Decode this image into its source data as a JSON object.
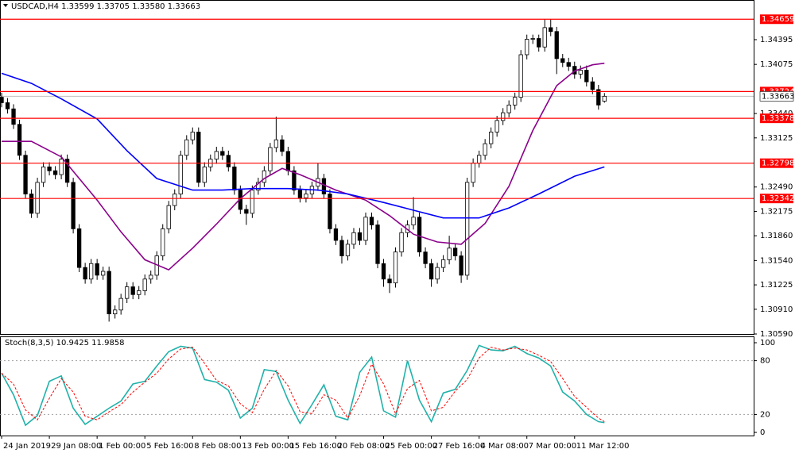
{
  "chart_data": [
    {
      "type": "candlestick",
      "title": "USDCAD,H4  1.33599 1.33705 1.33580 1.33663",
      "xlim": [
        -0.27,
        126
      ],
      "ylim": [
        1.3059,
        1.34887
      ],
      "yticks": [
        1.34395,
        1.34075,
        {
          "value": 1.3344,
          "label": "1.33440"
        },
        1.33125,
        {
          "value": 1.3249,
          "label": "1.32490"
        },
        1.32175,
        {
          "value": 1.3186,
          "label": "1.31860"
        },
        {
          "value": 1.3154,
          "label": "1.31540"
        },
        1.31225,
        {
          "value": 1.3091,
          "label": "1.30910"
        },
        {
          "value": 1.3059,
          "label": "1.30590"
        }
      ],
      "up_color": "#ffffff",
      "down_color": "#000000",
      "outline_color": "#000000",
      "candles": [
        [
          1.3365,
          1.3371,
          1.3352,
          1.3358
        ],
        [
          1.3358,
          1.3364,
          1.3344,
          1.335
        ],
        [
          1.335,
          1.3356,
          1.3324,
          1.333
        ],
        [
          1.333,
          1.3336,
          1.3284,
          1.329
        ],
        [
          1.329,
          1.3296,
          1.3234,
          1.324
        ],
        [
          1.324,
          1.3246,
          1.3209,
          1.3215
        ],
        [
          1.3215,
          1.3261,
          1.3209,
          1.3255
        ],
        [
          1.3255,
          1.3281,
          1.3249,
          1.3275
        ],
        [
          1.3275,
          1.3281,
          1.3264,
          1.327
        ],
        [
          1.327,
          1.3276,
          1.3259,
          1.3265
        ],
        [
          1.3265,
          1.3291,
          1.3259,
          1.3285
        ],
        [
          1.3285,
          1.3291,
          1.3249,
          1.3255
        ],
        [
          1.3255,
          1.3261,
          1.3189,
          1.3195
        ],
        [
          1.3195,
          1.3201,
          1.3139,
          1.3145
        ],
        [
          1.3145,
          1.3151,
          1.3124,
          1.313
        ],
        [
          1.313,
          1.3156,
          1.3124,
          1.315
        ],
        [
          1.315,
          1.3156,
          1.3129,
          1.3135
        ],
        [
          1.3135,
          1.3146,
          1.3129,
          1.314
        ],
        [
          1.314,
          1.3146,
          1.3075,
          1.3085
        ],
        [
          1.3085,
          1.3096,
          1.3079,
          1.309
        ],
        [
          1.309,
          1.3111,
          1.3084,
          1.3105
        ],
        [
          1.3105,
          1.3126,
          1.3099,
          1.312
        ],
        [
          1.312,
          1.3126,
          1.3104,
          1.311
        ],
        [
          1.311,
          1.3121,
          1.3104,
          1.3115
        ],
        [
          1.3115,
          1.3136,
          1.3109,
          1.313
        ],
        [
          1.313,
          1.3141,
          1.3124,
          1.3135
        ],
        [
          1.3135,
          1.3166,
          1.3129,
          1.316
        ],
        [
          1.316,
          1.3201,
          1.3154,
          1.3195
        ],
        [
          1.3195,
          1.3231,
          1.3189,
          1.3225
        ],
        [
          1.3225,
          1.3246,
          1.3219,
          1.324
        ],
        [
          1.324,
          1.3296,
          1.3234,
          1.329
        ],
        [
          1.329,
          1.3316,
          1.3284,
          1.331
        ],
        [
          1.331,
          1.3326,
          1.3304,
          1.332
        ],
        [
          1.332,
          1.3326,
          1.3249,
          1.3255
        ],
        [
          1.3255,
          1.3281,
          1.3249,
          1.3275
        ],
        [
          1.3275,
          1.3291,
          1.3269,
          1.3285
        ],
        [
          1.3285,
          1.3301,
          1.3279,
          1.3295
        ],
        [
          1.3295,
          1.3301,
          1.3284,
          1.329
        ],
        [
          1.329,
          1.3296,
          1.3269,
          1.3275
        ],
        [
          1.3275,
          1.3281,
          1.3239,
          1.3245
        ],
        [
          1.3245,
          1.3251,
          1.3214,
          1.322
        ],
        [
          1.322,
          1.3226,
          1.32,
          1.3215
        ],
        [
          1.3215,
          1.3251,
          1.3209,
          1.3245
        ],
        [
          1.3245,
          1.3261,
          1.3239,
          1.3255
        ],
        [
          1.3255,
          1.3276,
          1.3249,
          1.327
        ],
        [
          1.327,
          1.3306,
          1.3264,
          1.33
        ],
        [
          1.33,
          1.334,
          1.3294,
          1.331
        ],
        [
          1.331,
          1.3316,
          1.3289,
          1.3295
        ],
        [
          1.3295,
          1.3301,
          1.3264,
          1.327
        ],
        [
          1.327,
          1.3276,
          1.3239,
          1.3245
        ],
        [
          1.3245,
          1.3251,
          1.3229,
          1.3235
        ],
        [
          1.3235,
          1.3246,
          1.3229,
          1.324
        ],
        [
          1.324,
          1.3256,
          1.3234,
          1.325
        ],
        [
          1.325,
          1.328,
          1.3244,
          1.326
        ],
        [
          1.326,
          1.3266,
          1.3234,
          1.324
        ],
        [
          1.324,
          1.3246,
          1.3189,
          1.3195
        ],
        [
          1.3195,
          1.3201,
          1.3174,
          1.318
        ],
        [
          1.318,
          1.3186,
          1.315,
          1.316
        ],
        [
          1.316,
          1.3181,
          1.3154,
          1.3175
        ],
        [
          1.3175,
          1.3196,
          1.3169,
          1.319
        ],
        [
          1.319,
          1.3196,
          1.3174,
          1.318
        ],
        [
          1.318,
          1.3216,
          1.3174,
          1.321
        ],
        [
          1.321,
          1.3216,
          1.3194,
          1.32
        ],
        [
          1.32,
          1.3206,
          1.3144,
          1.315
        ],
        [
          1.315,
          1.3156,
          1.312,
          1.313
        ],
        [
          1.313,
          1.3136,
          1.3112,
          1.3125
        ],
        [
          1.3125,
          1.3171,
          1.3119,
          1.3165
        ],
        [
          1.3165,
          1.3196,
          1.3159,
          1.319
        ],
        [
          1.319,
          1.3206,
          1.3184,
          1.32
        ],
        [
          1.32,
          1.3236,
          1.3194,
          1.321
        ],
        [
          1.321,
          1.3216,
          1.3159,
          1.3165
        ],
        [
          1.3165,
          1.3171,
          1.3144,
          1.315
        ],
        [
          1.315,
          1.3156,
          1.312,
          1.313
        ],
        [
          1.313,
          1.3151,
          1.3124,
          1.3145
        ],
        [
          1.3145,
          1.3161,
          1.3139,
          1.3155
        ],
        [
          1.3155,
          1.3186,
          1.3149,
          1.317
        ],
        [
          1.317,
          1.3176,
          1.3154,
          1.316
        ],
        [
          1.316,
          1.3166,
          1.3125,
          1.3135
        ],
        [
          1.3135,
          1.3261,
          1.3129,
          1.3255
        ],
        [
          1.3255,
          1.3286,
          1.3249,
          1.328
        ],
        [
          1.328,
          1.3296,
          1.3274,
          1.329
        ],
        [
          1.329,
          1.3311,
          1.3284,
          1.3305
        ],
        [
          1.3305,
          1.3326,
          1.3299,
          1.332
        ],
        [
          1.332,
          1.3341,
          1.3314,
          1.3335
        ],
        [
          1.3335,
          1.3351,
          1.3329,
          1.3345
        ],
        [
          1.3345,
          1.3361,
          1.3339,
          1.3355
        ],
        [
          1.3355,
          1.3371,
          1.3349,
          1.3365
        ],
        [
          1.3365,
          1.3426,
          1.3359,
          1.342
        ],
        [
          1.342,
          1.3446,
          1.3414,
          1.344
        ],
        [
          1.344,
          1.3446,
          1.3434,
          1.3441
        ],
        [
          1.3441,
          1.3446,
          1.3424,
          1.343
        ],
        [
          1.343,
          1.3466,
          1.3424,
          1.3455
        ],
        [
          1.3455,
          1.3466,
          1.3444,
          1.345
        ],
        [
          1.345,
          1.3456,
          1.3395,
          1.3415
        ],
        [
          1.3415,
          1.3421,
          1.3404,
          1.341
        ],
        [
          1.341,
          1.3416,
          1.3399,
          1.3405
        ],
        [
          1.3405,
          1.3411,
          1.3389,
          1.3395
        ],
        [
          1.3395,
          1.3406,
          1.3389,
          1.34
        ],
        [
          1.34,
          1.3406,
          1.3379,
          1.3385
        ],
        [
          1.3385,
          1.3391,
          1.3369,
          1.3375
        ],
        [
          1.3375,
          1.3381,
          1.3349,
          1.3355
        ],
        [
          1.33599,
          1.33705,
          1.3358,
          1.33663
        ]
      ],
      "series": [
        {
          "color": "#8b008b",
          "x": [
            0,
            5,
            10,
            16,
            20,
            24,
            28,
            32,
            36,
            40,
            44,
            47,
            50,
            56,
            61,
            65,
            69,
            73,
            77,
            81,
            85,
            89,
            93,
            96,
            99,
            101
          ],
          "values": [
            1.3308,
            1.3308,
            1.3288,
            1.3232,
            1.3191,
            1.3155,
            1.3142,
            1.317,
            1.3201,
            1.3234,
            1.326,
            1.3273,
            1.3265,
            1.3245,
            1.3232,
            1.3212,
            1.3188,
            1.3178,
            1.3175,
            1.3202,
            1.325,
            1.3322,
            1.338,
            1.3399,
            1.3407,
            1.3409
          ]
        },
        {
          "color": "#0000ff",
          "x": [
            0,
            5,
            10,
            16,
            21,
            26,
            32,
            37,
            42,
            48,
            53,
            58,
            64,
            69,
            74,
            80,
            85,
            90,
            96,
            101
          ],
          "values": [
            1.3396,
            1.3383,
            1.3363,
            1.3337,
            1.3296,
            1.326,
            1.3245,
            1.3245,
            1.3247,
            1.3247,
            1.3245,
            1.324,
            1.3229,
            1.3219,
            1.3209,
            1.3209,
            1.3222,
            1.324,
            1.3263,
            1.3275
          ]
        }
      ],
      "levels": [
        1.34659,
        1.33724,
        1.33378,
        1.32798,
        1.32342
      ],
      "level_color": "#ff0000",
      "current_price": 1.33663
    },
    {
      "type": "line",
      "title": "Stoch(8,3,5) 10.9425 11.9858",
      "xlim": [
        -0.27,
        126
      ],
      "ylim": [
        -3.5,
        106.2
      ],
      "yticks": [
        100,
        80,
        20,
        0
      ],
      "levels": [
        80,
        20
      ],
      "xticks": [
        {
          "value": 0,
          "label": "24 Jan 2019"
        },
        {
          "value": 8,
          "label": "29 Jan 08:00"
        },
        {
          "value": 16,
          "label": "1 Feb 00:00"
        },
        {
          "value": 24,
          "label": "5 Feb 16:00"
        },
        {
          "value": 32,
          "label": "8 Feb 08:00"
        },
        {
          "value": 40,
          "label": "13 Feb 00:00"
        },
        {
          "value": 48,
          "label": "15 Feb 16:00"
        },
        {
          "value": 56,
          "label": "20 Feb 08:00"
        },
        {
          "value": 64,
          "label": "25 Feb 00:00"
        },
        {
          "value": 72,
          "label": "27 Feb 16:00"
        },
        {
          "value": 80,
          "label": "4 Mar 08:00"
        },
        {
          "value": 88,
          "label": "7 Mar 00:00"
        },
        {
          "value": 96,
          "label": "11 Mar 12:00"
        }
      ],
      "series": [
        {
          "color": "#20b2aa",
          "x": [
            0,
            2,
            4,
            6,
            8,
            10,
            12,
            14,
            16,
            18,
            20,
            22,
            24,
            26,
            28,
            30,
            32,
            34,
            36,
            38,
            40,
            42,
            44,
            46,
            48,
            50,
            52,
            54,
            56,
            58,
            60,
            62,
            64,
            66,
            68,
            70,
            72,
            74,
            76,
            78,
            80,
            82,
            84,
            86,
            88,
            90,
            92,
            94,
            96,
            98,
            100,
            101
          ],
          "values": [
            66,
            42,
            8,
            19,
            57,
            63,
            27,
            9,
            18,
            27,
            35,
            54,
            57,
            74,
            90,
            96,
            94,
            59,
            56,
            47,
            16,
            27,
            70,
            68,
            36,
            10,
            31,
            53,
            18,
            14,
            67,
            84,
            24,
            17,
            80,
            36,
            12,
            44,
            48,
            69,
            97,
            92,
            91,
            96,
            88,
            83,
            74,
            45,
            35,
            20,
            12,
            10.9425
          ]
        },
        {
          "color": "#ff0000",
          "dashed": true,
          "x": [
            0,
            2,
            4,
            6,
            8,
            10,
            12,
            14,
            16,
            18,
            20,
            22,
            24,
            26,
            28,
            30,
            32,
            34,
            36,
            38,
            40,
            42,
            44,
            46,
            48,
            50,
            52,
            54,
            56,
            58,
            60,
            62,
            64,
            66,
            68,
            70,
            72,
            74,
            76,
            78,
            80,
            82,
            84,
            86,
            88,
            90,
            92,
            94,
            96,
            98,
            100,
            101
          ],
          "values": [
            66,
            54,
            25,
            14,
            38,
            60,
            45,
            18,
            14,
            23,
            31,
            45,
            56,
            66,
            82,
            93,
            95,
            77,
            58,
            52,
            32,
            22,
            48,
            69,
            52,
            23,
            21,
            42,
            36,
            16,
            41,
            76,
            54,
            21,
            49,
            58,
            24,
            28,
            46,
            59,
            83,
            95,
            92,
            94,
            92,
            86,
            79,
            60,
            40,
            28,
            16,
            11.9858
          ]
        }
      ]
    }
  ]
}
